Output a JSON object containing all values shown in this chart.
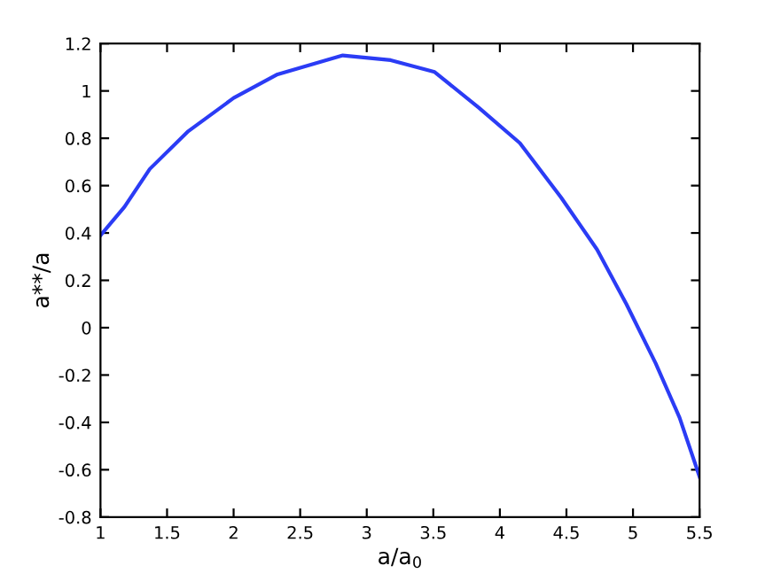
{
  "chart_data": {
    "type": "line",
    "xlabel": "a/a$_{0}$",
    "ylabel": "a**/a",
    "x": [
      1,
      1.18,
      1.37,
      1.66,
      2.0,
      2.33,
      2.82,
      3.18,
      3.51,
      3.84,
      4.15,
      4.46,
      4.73,
      4.95,
      5.17,
      5.35,
      5.5
    ],
    "series": [
      {
        "color": "#2b3cf5",
        "values": [
          0.39,
          0.51,
          0.67,
          0.83,
          0.97,
          1.07,
          1.15,
          1.13,
          1.08,
          0.93,
          0.78,
          0.55,
          0.33,
          0.1,
          -0.15,
          -0.38,
          -0.63
        ]
      }
    ],
    "xlim": [
      1,
      5.5
    ],
    "ylim": [
      -0.8,
      1.2
    ],
    "xticks": [
      1,
      1.5,
      2,
      2.5,
      3,
      3.5,
      4,
      4.5,
      5,
      5.5
    ],
    "yticks": [
      -0.8,
      -0.6,
      -0.4,
      -0.2,
      0,
      0.2,
      0.4,
      0.6,
      0.8,
      1,
      1.2
    ],
    "grid": false,
    "legend": false
  }
}
